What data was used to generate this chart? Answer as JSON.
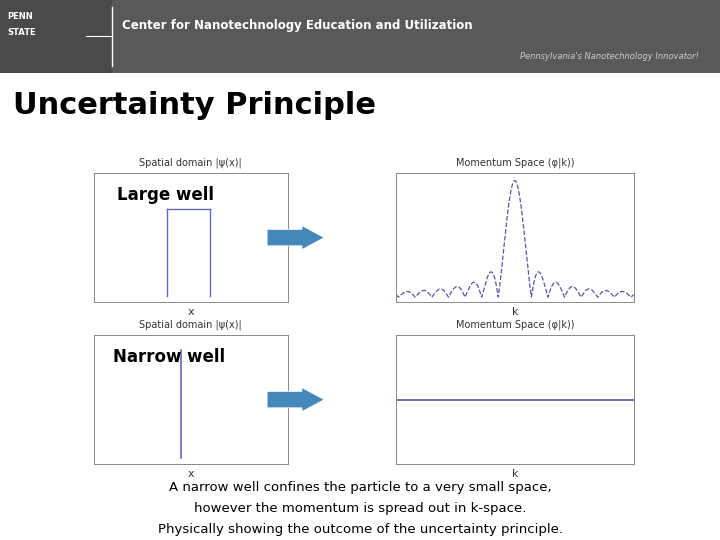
{
  "title": "Uncertainty Principle",
  "header_bg": "#5a5a5a",
  "header_text": "Center for Nanotechnology Education and Utilization",
  "header_subtext": "Pennsylvania's Nanotechnology Innovator!",
  "bg_color": "#ffffff",
  "large_well_label": "Large well",
  "narrow_well_label": "Narrow well",
  "spatial_label": "Spatial domain |ψ(x)|",
  "momentum_label": "Momentum Space (φ|k))",
  "x_axis_label": "x",
  "k_axis_label": "k",
  "footer_line1": "A narrow well confines the particle to a very small space,",
  "footer_line2": "however the momentum is spread out in k-space.",
  "footer_line3": "Physically showing the outcome of the uncertainty principle.",
  "well_color": "#6666bb",
  "sinc_color": "#5555aa",
  "flat_color": "#5555aa",
  "arrow_color": "#4488bb",
  "title_fontsize": 22,
  "label_fontsize": 7,
  "well_label_fontsize": 12,
  "footer_fontsize": 9.5
}
